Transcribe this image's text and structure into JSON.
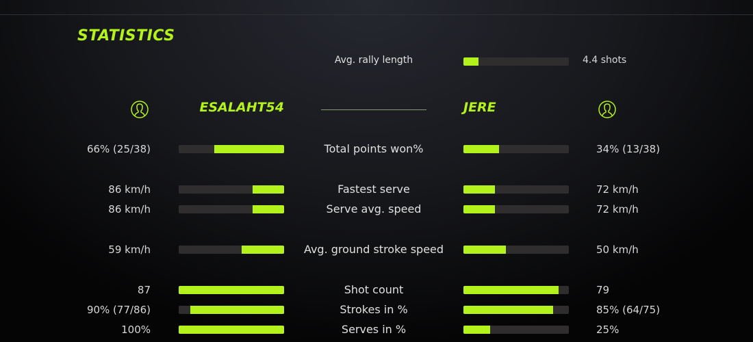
{
  "title": "STATISTICS",
  "accent": "#b4f21c",
  "rally": {
    "label": "Avg. rally length",
    "value": "4.4 shots",
    "fill": 0.14
  },
  "players": {
    "left": {
      "name": "ESALAHT54",
      "icon": "user-icon"
    },
    "right": {
      "name": "JERE",
      "icon": "user-icon"
    }
  },
  "stats": [
    {
      "label": "Total points won%",
      "left": "66% (25/38)",
      "right": "34% (13/38)",
      "left_fill": 0.66,
      "right_fill": 0.34
    },
    {
      "label": "Fastest serve",
      "left": "86 km/h",
      "right": "72 km/h",
      "left_fill": 0.3,
      "right_fill": 0.3
    },
    {
      "label": "Serve avg. speed",
      "left": "86 km/h",
      "right": "72 km/h",
      "left_fill": 0.3,
      "right_fill": 0.3
    },
    {
      "label": "Avg. ground stroke speed",
      "left": "59 km/h",
      "right": "50 km/h",
      "left_fill": 0.4,
      "right_fill": 0.4
    },
    {
      "label": "Shot count",
      "left": "87",
      "right": "79",
      "left_fill": 1.0,
      "right_fill": 0.9
    },
    {
      "label": "Strokes in %",
      "left": "90% (77/86)",
      "right": "85% (64/75)",
      "left_fill": 0.89,
      "right_fill": 0.85
    },
    {
      "label": "Serves in %",
      "left": "100%",
      "right": "25%",
      "left_fill": 1.0,
      "right_fill": 0.25
    }
  ]
}
